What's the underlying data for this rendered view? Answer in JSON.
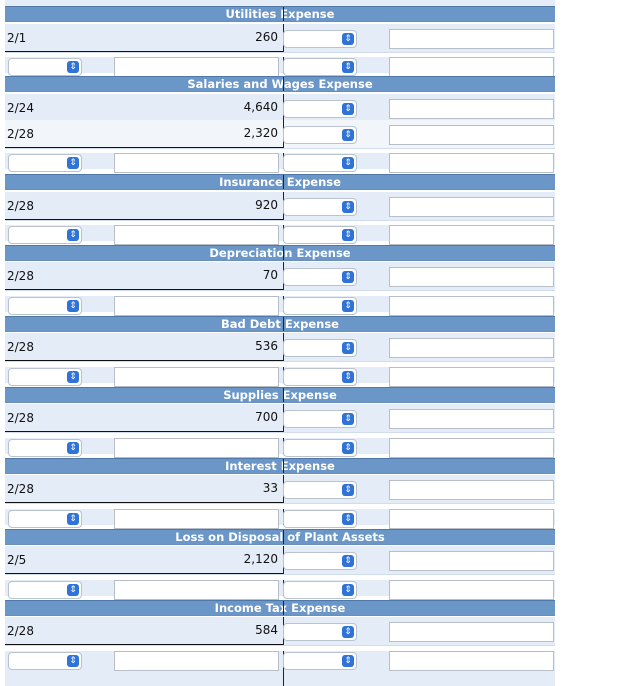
{
  "icons": {
    "select_arrow": "up-down-chevron-icon"
  },
  "accounts": [
    {
      "title": "Utilities Expense",
      "entries": [
        {
          "date": "2/1",
          "amount": "260"
        }
      ]
    },
    {
      "title": "Salaries and Wages Expense",
      "entries": [
        {
          "date": "2/24",
          "amount": "4,640"
        },
        {
          "date": "2/28",
          "amount": "2,320"
        }
      ]
    },
    {
      "title": "Insurance Expense",
      "entries": [
        {
          "date": "2/28",
          "amount": "920"
        }
      ]
    },
    {
      "title": "Depreciation Expense",
      "entries": [
        {
          "date": "2/28",
          "amount": "70"
        }
      ]
    },
    {
      "title": "Bad Debt Expense",
      "entries": [
        {
          "date": "2/28",
          "amount": "536"
        }
      ]
    },
    {
      "title": "Supplies Expense",
      "entries": [
        {
          "date": "2/28",
          "amount": "700"
        }
      ]
    },
    {
      "title": "Interest Expense",
      "entries": [
        {
          "date": "2/28",
          "amount": "33"
        }
      ]
    },
    {
      "title": "Loss on Disposal of Plant Assets",
      "entries": [
        {
          "date": "2/5",
          "amount": "2,120"
        }
      ]
    },
    {
      "title": "Income Tax Expense",
      "entries": [
        {
          "date": "2/28",
          "amount": "584"
        }
      ]
    }
  ]
}
